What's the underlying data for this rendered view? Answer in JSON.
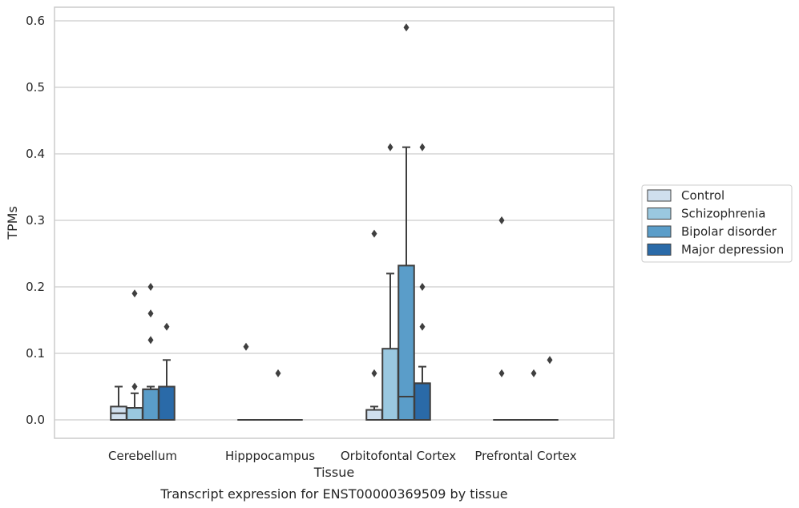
{
  "caption": "Transcript expression for ENST00000369509 by tissue",
  "chart_data": {
    "type": "box",
    "xlabel": "Tissue",
    "ylabel": "TPMs",
    "ylim": [
      -0.028,
      0.62
    ],
    "yticks": [
      "0.0",
      "0.1",
      "0.2",
      "0.3",
      "0.4",
      "0.5",
      "0.6"
    ],
    "ytick_values": [
      0,
      0.1,
      0.2,
      0.3,
      0.4,
      0.5,
      0.6
    ],
    "grid": "horizontal",
    "legend_position": "right",
    "categories": [
      "Cerebellum",
      "Hipppocampus",
      "Orbitofontal Cortex",
      "Prefrontal Cortex"
    ],
    "series": [
      {
        "name": "Control",
        "color": "#cfdfee",
        "boxes": [
          {
            "q1": 0,
            "median": 0.01,
            "q3": 0.02,
            "whislo": 0,
            "whishi": 0.05,
            "fliers": []
          },
          {
            "q1": 0,
            "median": 0,
            "q3": 0,
            "whislo": 0,
            "whishi": 0,
            "fliers": [
              0.11
            ]
          },
          {
            "q1": 0,
            "median": 0,
            "q3": 0.015,
            "whislo": 0,
            "whishi": 0.02,
            "fliers": [
              0.07,
              0.28
            ]
          },
          {
            "q1": 0,
            "median": 0,
            "q3": 0,
            "whislo": 0,
            "whishi": 0,
            "fliers": [
              0.07,
              0.3
            ]
          }
        ]
      },
      {
        "name": "Schizophrenia",
        "color": "#9ac8e0",
        "boxes": [
          {
            "q1": 0,
            "median": 0.018,
            "q3": 0.018,
            "whislo": 0,
            "whishi": 0.04,
            "fliers": [
              0.05,
              0.19
            ]
          },
          {
            "q1": 0,
            "median": 0,
            "q3": 0,
            "whislo": 0,
            "whishi": 0,
            "fliers": []
          },
          {
            "q1": 0,
            "median": 0,
            "q3": 0.107,
            "whislo": 0,
            "whishi": 0.22,
            "fliers": [
              0.41
            ]
          },
          {
            "q1": 0,
            "median": 0,
            "q3": 0,
            "whislo": 0,
            "whishi": 0,
            "fliers": []
          }
        ]
      },
      {
        "name": "Bipolar disorder",
        "color": "#5a9dc9",
        "boxes": [
          {
            "q1": 0,
            "median": 0.046,
            "q3": 0.046,
            "whislo": 0,
            "whishi": 0.05,
            "fliers": [
              0.12,
              0.16,
              0.2
            ]
          },
          {
            "q1": 0,
            "median": 0,
            "q3": 0,
            "whislo": 0,
            "whishi": 0,
            "fliers": [
              0.07
            ]
          },
          {
            "q1": 0,
            "median": 0.035,
            "q3": 0.232,
            "whislo": 0,
            "whishi": 0.41,
            "fliers": [
              0.59
            ]
          },
          {
            "q1": 0,
            "median": 0,
            "q3": 0,
            "whislo": 0,
            "whishi": 0,
            "fliers": [
              0.07
            ]
          }
        ]
      },
      {
        "name": "Major depression",
        "color": "#2a6aa8",
        "boxes": [
          {
            "q1": 0,
            "median": 0.05,
            "q3": 0.05,
            "whislo": 0,
            "whishi": 0.09,
            "fliers": [
              0.14
            ]
          },
          {
            "q1": 0,
            "median": 0,
            "q3": 0,
            "whislo": 0,
            "whishi": 0,
            "fliers": []
          },
          {
            "q1": 0,
            "median": 0.055,
            "q3": 0.055,
            "whislo": 0,
            "whishi": 0.08,
            "fliers": [
              0.14,
              0.2,
              0.41
            ]
          },
          {
            "q1": 0,
            "median": 0,
            "q3": 0,
            "whislo": 0,
            "whishi": 0,
            "fliers": [
              0.09
            ]
          }
        ]
      }
    ]
  }
}
